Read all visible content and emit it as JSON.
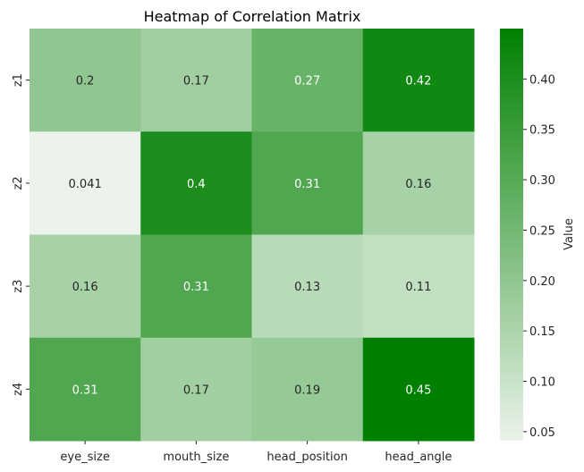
{
  "chart_data": {
    "type": "heatmap",
    "title": "Heatmap of Correlation Matrix",
    "xlabel": "",
    "ylabel": "",
    "x_categories": [
      "eye_size",
      "mouth_size",
      "head_position",
      "head_angle"
    ],
    "y_categories": [
      "z1",
      "z2",
      "z3",
      "z4"
    ],
    "values": [
      [
        0.2,
        0.17,
        0.27,
        0.42
      ],
      [
        0.041,
        0.4,
        0.31,
        0.16
      ],
      [
        0.16,
        0.31,
        0.13,
        0.11
      ],
      [
        0.31,
        0.17,
        0.19,
        0.45
      ]
    ],
    "annotations": [
      [
        "0.2",
        "0.17",
        "0.27",
        "0.42"
      ],
      [
        "0.041",
        "0.4",
        "0.31",
        "0.16"
      ],
      [
        "0.16",
        "0.31",
        "0.13",
        "0.11"
      ],
      [
        "0.31",
        "0.17",
        "0.19",
        "0.45"
      ]
    ],
    "colorbar": {
      "label": "Value",
      "range": [
        0.041,
        0.45
      ],
      "ticks": [
        0.05,
        0.1,
        0.15,
        0.2,
        0.25,
        0.3,
        0.35,
        0.4
      ],
      "tick_labels": [
        "0.05",
        "0.10",
        "0.15",
        "0.20",
        "0.25",
        "0.30",
        "0.35",
        "0.40"
      ],
      "color_low": "#ebf3eb",
      "color_high": "#008000"
    },
    "grid": false
  }
}
